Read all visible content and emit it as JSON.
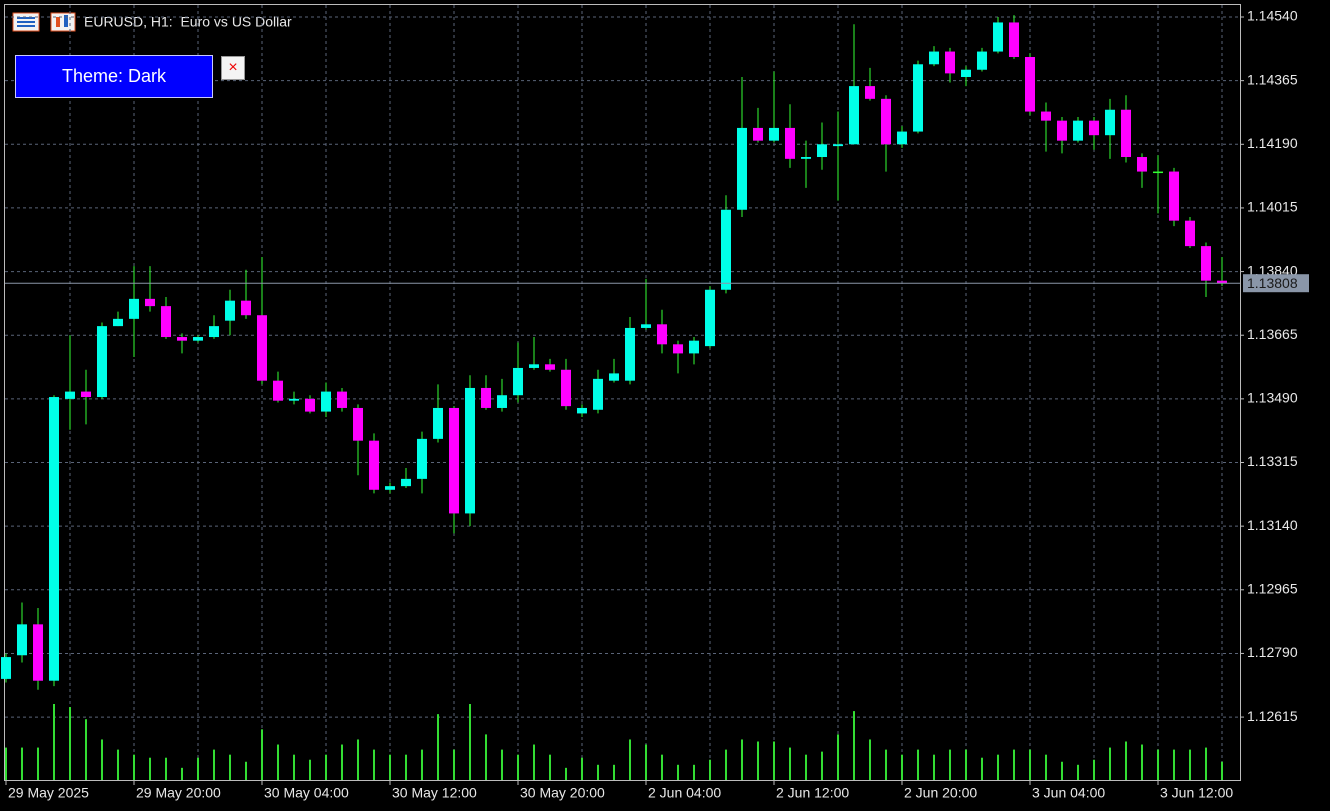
{
  "chart_data": {
    "type": "candlestick",
    "title": "EURUSD, H1:  Euro vs US Dollar",
    "button": "Theme: Dark",
    "close_button": "×",
    "categories": [
      "29 May 2025",
      null,
      null,
      null,
      null,
      null,
      null,
      null,
      "29 May 20:00",
      null,
      null,
      null,
      null,
      null,
      null,
      null,
      "30 May 04:00",
      null,
      null,
      null,
      null,
      null,
      null,
      null,
      "30 May 12:00",
      null,
      null,
      null,
      null,
      null,
      null,
      null,
      "30 May 20:00",
      null,
      null,
      null,
      null,
      null,
      null,
      null,
      "2 Jun 04:00",
      null,
      null,
      null,
      null,
      null,
      null,
      null,
      "2 Jun 12:00",
      null,
      null,
      null,
      null,
      null,
      null,
      null,
      "2 Jun 20:00",
      null,
      null,
      null,
      null,
      null,
      null,
      null,
      "3 Jun 04:00",
      null,
      null,
      null,
      null,
      null,
      null,
      null,
      "3 Jun 12:00",
      null,
      null,
      null,
      null
    ],
    "open": [
      1.1272,
      1.12785,
      1.1287,
      1.12715,
      1.1349,
      1.1351,
      1.13495,
      1.1369,
      1.1371,
      1.13765,
      1.13745,
      1.1366,
      1.1365,
      1.1366,
      1.13705,
      1.1376,
      1.1372,
      1.1354,
      1.13485,
      1.1349,
      1.13455,
      1.1351,
      1.13465,
      1.13375,
      1.1324,
      1.1325,
      1.1327,
      1.1338,
      1.13465,
      1.13175,
      1.1352,
      1.13465,
      1.135,
      1.13575,
      1.13585,
      1.1357,
      1.1345,
      1.1346,
      1.1354,
      1.1354,
      1.13685,
      1.13695,
      1.1364,
      1.13615,
      1.13635,
      1.1379,
      1.1401,
      1.14235,
      1.142,
      1.14235,
      1.1415,
      1.14155,
      1.14185,
      1.1419,
      1.1435,
      1.14315,
      1.1419,
      1.14225,
      1.1441,
      1.14445,
      1.14375,
      1.14395,
      1.14445,
      1.14525,
      1.1443,
      1.1428,
      1.14255,
      1.142,
      1.14255,
      1.14215,
      1.14285,
      1.14155,
      1.14115,
      1.14115,
      1.1398,
      1.1391,
      1.13815
    ],
    "high": [
      1.1279,
      1.1293,
      1.12915,
      1.135,
      1.13665,
      1.1357,
      1.137,
      1.1373,
      1.13855,
      1.13855,
      1.1377,
      1.1367,
      1.13665,
      1.1372,
      1.1379,
      1.13845,
      1.1388,
      1.13565,
      1.1351,
      1.135,
      1.13535,
      1.1352,
      1.13475,
      1.13395,
      1.1326,
      1.133,
      1.134,
      1.1353,
      1.1347,
      1.13555,
      1.13555,
      1.13545,
      1.13645,
      1.1366,
      1.136,
      1.136,
      1.13475,
      1.1357,
      1.136,
      1.13715,
      1.1382,
      1.13735,
      1.1365,
      1.1366,
      1.138,
      1.1405,
      1.14375,
      1.1429,
      1.1439,
      1.143,
      1.142,
      1.1425,
      1.1428,
      1.1452,
      1.144,
      1.14325,
      1.1424,
      1.1442,
      1.1446,
      1.14455,
      1.14405,
      1.14455,
      1.1454,
      1.14545,
      1.1444,
      1.14305,
      1.14265,
      1.14265,
      1.14265,
      1.14315,
      1.14325,
      1.14165,
      1.1416,
      1.14125,
      1.1399,
      1.1392,
      1.1388
    ],
    "low": [
      1.1271,
      1.12765,
      1.1269,
      1.127,
      1.13405,
      1.1342,
      1.1349,
      1.1369,
      1.13605,
      1.1373,
      1.13655,
      1.13615,
      1.13645,
      1.13655,
      1.13665,
      1.1371,
      1.1353,
      1.1348,
      1.13475,
      1.1345,
      1.1344,
      1.13455,
      1.1328,
      1.1323,
      1.1323,
      1.13245,
      1.1323,
      1.1337,
      1.1312,
      1.1314,
      1.1346,
      1.13455,
      1.1348,
      1.1357,
      1.13565,
      1.1346,
      1.1344,
      1.1345,
      1.13535,
      1.1353,
      1.1368,
      1.13615,
      1.1356,
      1.13585,
      1.1363,
      1.1378,
      1.1399,
      1.14195,
      1.14195,
      1.14125,
      1.1407,
      1.1412,
      1.14035,
      1.1419,
      1.1431,
      1.14115,
      1.1418,
      1.1422,
      1.14405,
      1.1436,
      1.1435,
      1.1439,
      1.1444,
      1.14425,
      1.1427,
      1.1417,
      1.14165,
      1.14195,
      1.14175,
      1.1415,
      1.1414,
      1.1407,
      1.14,
      1.13965,
      1.13905,
      1.1377,
      1.138
    ],
    "close": [
      1.1278,
      1.1287,
      1.12715,
      1.13495,
      1.1351,
      1.13495,
      1.1369,
      1.1371,
      1.13765,
      1.13745,
      1.1366,
      1.1365,
      1.1366,
      1.1369,
      1.1376,
      1.1372,
      1.1354,
      1.13485,
      1.1349,
      1.13455,
      1.1351,
      1.13465,
      1.13375,
      1.1324,
      1.1325,
      1.1327,
      1.1338,
      1.13465,
      1.13175,
      1.1352,
      1.13465,
      1.135,
      1.13575,
      1.13585,
      1.1357,
      1.1347,
      1.13465,
      1.13545,
      1.1356,
      1.13685,
      1.13695,
      1.1364,
      1.13615,
      1.1365,
      1.1379,
      1.1401,
      1.14235,
      1.142,
      1.14235,
      1.1415,
      1.14155,
      1.1419,
      1.1419,
      1.1435,
      1.14315,
      1.1419,
      1.14225,
      1.1441,
      1.14445,
      1.14385,
      1.14395,
      1.14445,
      1.14525,
      1.1443,
      1.1428,
      1.14255,
      1.142,
      1.14255,
      1.14215,
      1.14285,
      1.14155,
      1.14115,
      1.14115,
      1.1398,
      1.1391,
      1.13815,
      1.13808
    ],
    "volume": [
      32,
      32,
      32,
      75,
      72,
      60,
      40,
      30,
      25,
      22,
      22,
      12,
      22,
      30,
      25,
      18,
      50,
      35,
      25,
      20,
      25,
      35,
      40,
      30,
      25,
      25,
      30,
      65,
      30,
      75,
      45,
      30,
      25,
      35,
      25,
      12,
      22,
      15,
      15,
      40,
      35,
      25,
      15,
      15,
      20,
      30,
      40,
      38,
      38,
      32,
      25,
      28,
      45,
      68,
      40,
      30,
      25,
      30,
      25,
      30,
      30,
      22,
      25,
      30,
      30,
      25,
      18,
      15,
      20,
      32,
      38,
      35,
      30,
      30,
      30,
      32,
      18
    ],
    "last_price": 1.13808,
    "ylim": [
      1.12442,
      1.14573
    ],
    "yticks": [
      {
        "value": 1.1454,
        "label": "1.14540"
      },
      1.14365,
      {
        "value": 1.1419,
        "label": "1.14190"
      },
      1.14015,
      {
        "value": 1.1384,
        "label": "1.13840"
      },
      1.13665,
      {
        "value": 1.1349,
        "label": "1.13490"
      },
      1.13315,
      {
        "value": 1.1314,
        "label": "1.13140"
      },
      1.12965,
      {
        "value": 1.1279,
        "label": "1.12790"
      },
      1.12615
    ],
    "grid": true,
    "bull_color": "#00ffe8",
    "bear_color": "#ff00ff",
    "wick_color": "#33ff33",
    "doji_color": "#33ff33",
    "volume_color": "#33dd33",
    "grid_color": "#5a6478",
    "last_price_color": "#8a96a8"
  }
}
